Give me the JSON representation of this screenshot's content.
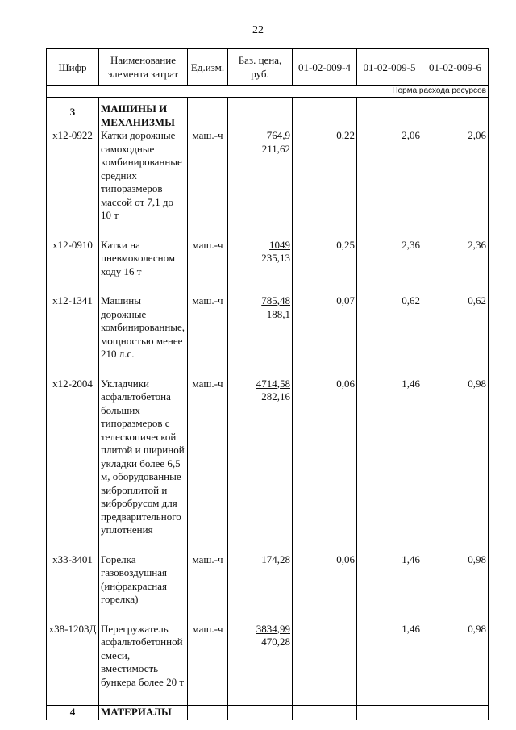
{
  "page_number": "22",
  "table": {
    "header": [
      "Шифр",
      "Наименование элемента затрат",
      "Ед.изм.",
      "Баз. цена, руб.",
      "01-02-009-4",
      "01-02-009-5",
      "01-02-009-6"
    ],
    "norm_label": "Норма расхода ресурсов",
    "section": {
      "number": "3",
      "title": "МАШИНЫ И МЕХАНИЗМЫ"
    },
    "rows": [
      {
        "code": "х12-0922",
        "name": "Катки дорожные самоходные комбинированные средних типоразмеров массой от 7,1 до 10 т",
        "unit": "маш.-ч",
        "price": "764,9",
        "price_sub": "211,62",
        "v4": "0,22",
        "v5": "2,06",
        "v6": "2,06"
      },
      {
        "code": "х12-0910",
        "name": "Катки на пневмоколесном ходу 16 т",
        "unit": "маш.-ч",
        "price": "1049",
        "price_sub": "235,13",
        "v4": "0,25",
        "v5": "2,36",
        "v6": "2,36"
      },
      {
        "code": "х12-1341",
        "name": "Машины дорожные комбинированные, мощностью менее 210 л.с.",
        "unit": "маш.-ч",
        "price": "785,48",
        "price_sub": "188,1",
        "v4": "0,07",
        "v5": "0,62",
        "v6": "0,62"
      },
      {
        "code": "х12-2004",
        "name": "Укладчики асфальтобетона больших типоразмеров с телескопической плитой и шириной укладки более 6,5 м, оборудованные виброплитой и вибробрусом для предварительного уплотнения",
        "unit": "маш.-ч",
        "price": "4714,58",
        "price_sub": "282,16",
        "v4": "0,06",
        "v5": "1,46",
        "v6": "0,98"
      },
      {
        "code": "х33-3401",
        "name": "Горелка газовоздушная (инфракрасная горелка)",
        "unit": "маш.-ч",
        "price": "174,28",
        "v4": "0,06",
        "v5": "1,46",
        "v6": "0,98"
      },
      {
        "code": "х38-1203Д",
        "name": "Перегружатель асфальтобетонной смеси, вместимость бункера более 20 т",
        "unit": "маш.-ч",
        "price": "3834,99",
        "price_sub": "470,28",
        "v5": "1,46",
        "v6": "0,98"
      }
    ],
    "footer_section": {
      "number": "4",
      "title": "МАТЕРИАЛЫ"
    }
  }
}
